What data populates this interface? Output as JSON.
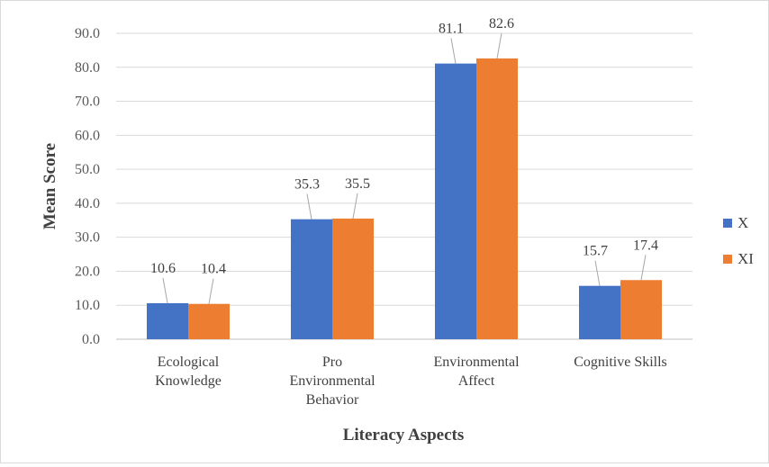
{
  "chart_data": {
    "type": "bar",
    "categories": [
      [
        "Ecological",
        "Knowledge"
      ],
      [
        "Pro",
        "Environmental",
        "Behavior"
      ],
      [
        "Environmental",
        "Affect"
      ],
      [
        "Cognitive Skills"
      ]
    ],
    "series": [
      {
        "name": "X",
        "color": "#4472C4",
        "values": [
          10.6,
          35.3,
          81.1,
          15.7
        ]
      },
      {
        "name": "XI",
        "color": "#ED7D31",
        "values": [
          10.4,
          35.5,
          82.6,
          17.4
        ]
      }
    ],
    "xlabel": "Literacy Aspects",
    "ylabel": "Mean Score",
    "ylim": [
      0,
      90
    ],
    "yticks": [
      0,
      10,
      20,
      30,
      40,
      50,
      60,
      70,
      80,
      90
    ],
    "ytick_labels": [
      "0.0",
      "10.0",
      "20.0",
      "30.0",
      "40.0",
      "50.0",
      "60.0",
      "70.0",
      "80.0",
      "90.0"
    ],
    "data_labels": [
      [
        "10.6",
        "35.3",
        "81.1",
        "15.7"
      ],
      [
        "10.4",
        "35.5",
        "82.6",
        "17.4"
      ]
    ],
    "grid": true,
    "legend": "right"
  }
}
